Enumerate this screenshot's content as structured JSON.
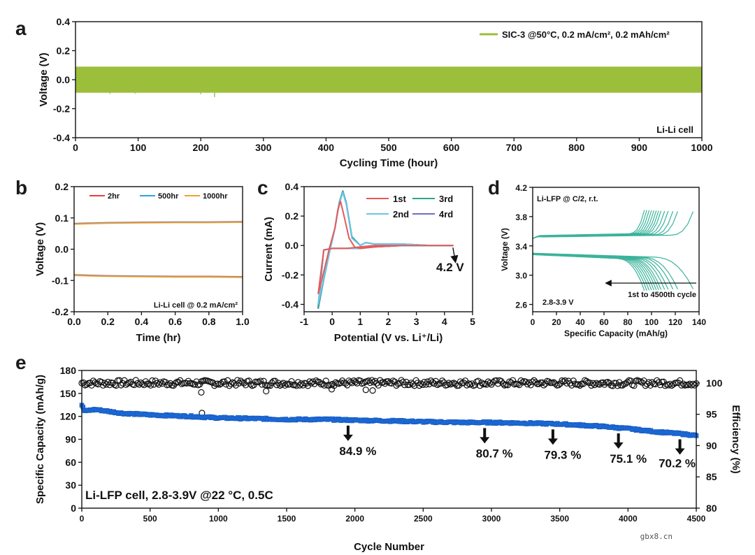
{
  "watermark": "gbx8.cn",
  "chart_data": [
    {
      "panel": "a",
      "type": "line",
      "title": "",
      "xlabel": "Cycling Time (hour)",
      "ylabel": "Voltage (V)",
      "xlim": [
        0,
        1000
      ],
      "ylim": [
        -0.4,
        0.4
      ],
      "xticks": [
        0,
        100,
        200,
        300,
        400,
        500,
        600,
        700,
        800,
        900,
        1000
      ],
      "yticks": [
        -0.4,
        -0.2,
        0.0,
        0.2,
        0.4
      ],
      "ytick_labels": [
        "-0.4",
        "-0.2",
        "0.0",
        "0.2",
        "0.4"
      ],
      "series": [
        {
          "name": "SIC-3 @50°C, 0.2 mA/cm², 0.2 mAh/cm²",
          "color": "#9bbf3a",
          "band_upper": 0.09,
          "band_lower": -0.09,
          "x_range": [
            0,
            1000
          ]
        }
      ],
      "annotation": "Li-Li cell",
      "legend_location": "top-right"
    },
    {
      "panel": "b",
      "type": "line",
      "xlabel": "Time (hr)",
      "ylabel": "Voltage (V)",
      "xlim": [
        0,
        1.0
      ],
      "ylim": [
        -0.2,
        0.2
      ],
      "xticks": [
        0.0,
        0.2,
        0.4,
        0.6,
        0.8,
        1.0
      ],
      "xtick_labels": [
        "0.0",
        "0.2",
        "0.4",
        "0.6",
        "0.8",
        "1.0"
      ],
      "yticks": [
        -0.2,
        -0.1,
        0.0,
        0.1,
        0.2
      ],
      "ytick_labels": [
        "-0.2",
        "-0.1",
        "0.0",
        "0.1",
        "0.2"
      ],
      "series": [
        {
          "name": "2hr",
          "color": "#e0443c",
          "x": [
            0,
            0.2,
            0.4,
            0.6,
            0.8,
            1.0
          ],
          "upper": [
            0.082,
            0.085,
            0.086,
            0.087,
            0.087,
            0.088
          ],
          "lower": [
            -0.082,
            -0.085,
            -0.086,
            -0.087,
            -0.087,
            -0.088
          ]
        },
        {
          "name": "500hr",
          "color": "#2aa6e0",
          "x": [
            0,
            0.2,
            0.4,
            0.6,
            0.8,
            1.0
          ],
          "upper": [
            0.081,
            0.084,
            0.085,
            0.086,
            0.086,
            0.087
          ],
          "lower": [
            -0.083,
            -0.086,
            -0.087,
            -0.088,
            -0.088,
            -0.089
          ]
        },
        {
          "name": "1000hr",
          "color": "#f0a030",
          "x": [
            0,
            0.2,
            0.4,
            0.6,
            0.8,
            1.0
          ],
          "upper": [
            0.08,
            0.083,
            0.084,
            0.085,
            0.085,
            0.086
          ],
          "lower": [
            -0.084,
            -0.087,
            -0.088,
            -0.089,
            -0.089,
            -0.09
          ]
        }
      ],
      "annotation": "Li-Li cell @ 0.2 mA/cm²",
      "legend_location": "top"
    },
    {
      "panel": "c",
      "type": "line",
      "xlabel": "Potential (V vs. Li⁺/Li)",
      "ylabel": "Current (mA)",
      "xlim": [
        -1,
        5
      ],
      "ylim": [
        -0.45,
        0.4
      ],
      "xticks": [
        -1,
        0,
        1,
        2,
        3,
        4,
        5
      ],
      "yticks": [
        -0.4,
        -0.2,
        0.0,
        0.2,
        0.4
      ],
      "ytick_labels": [
        "-0.4",
        "-0.2",
        "0.0",
        "0.2",
        "0.4"
      ],
      "series": [
        {
          "name": "1st",
          "color": "#e65a5a",
          "x": [
            -0.5,
            -0.3,
            -0.1,
            0.1,
            0.2,
            0.3,
            0.4,
            0.6,
            0.8,
            1.0,
            1.5,
            2.5,
            3.5,
            4.3,
            3.5,
            2.5,
            1.5,
            1.0,
            0.5,
            0.0,
            -0.3,
            -0.5
          ],
          "y": [
            -0.33,
            -0.18,
            -0.02,
            0.12,
            0.24,
            0.3,
            0.22,
            0.05,
            -0.01,
            -0.02,
            -0.01,
            0.0,
            0.0,
            0.0,
            0.0,
            0.0,
            0.0,
            -0.01,
            -0.02,
            -0.02,
            -0.03,
            -0.33
          ]
        },
        {
          "name": "2nd",
          "color": "#6fc4ea",
          "x": [
            -0.5,
            -0.3,
            -0.1,
            0.1,
            0.25,
            0.38,
            0.5,
            0.7,
            1.0,
            1.2,
            1.5,
            2.5,
            3.5,
            4.3,
            3.5,
            2.5,
            1.5,
            1.0,
            0.5,
            0.0,
            -0.3,
            -0.5
          ],
          "y": [
            -0.4,
            -0.22,
            -0.05,
            0.12,
            0.28,
            0.36,
            0.28,
            0.05,
            0.0,
            0.02,
            0.01,
            0.01,
            0.0,
            0.0,
            0.0,
            0.0,
            -0.01,
            -0.02,
            -0.02,
            -0.02,
            -0.03,
            -0.4
          ]
        },
        {
          "name": "3rd",
          "color": "#2aa58a",
          "x": [
            -0.5,
            -0.3,
            -0.1,
            0.1,
            0.25,
            0.38,
            0.5,
            0.7,
            1.0,
            1.2,
            1.5,
            2.5,
            3.5,
            4.3,
            3.5,
            2.5,
            1.5,
            1.0,
            0.5,
            0.0,
            -0.3,
            -0.5
          ],
          "y": [
            -0.42,
            -0.23,
            -0.05,
            0.12,
            0.29,
            0.37,
            0.29,
            0.06,
            0.0,
            0.02,
            0.01,
            0.01,
            0.0,
            0.0,
            0.0,
            0.0,
            -0.01,
            -0.02,
            -0.02,
            -0.02,
            -0.03,
            -0.42
          ]
        },
        {
          "name": "4rd",
          "color": "#6f6fbf",
          "x": [
            -0.5,
            -0.3,
            -0.1,
            0.1,
            0.25,
            0.38,
            0.5,
            0.7,
            1.0,
            1.2,
            1.5,
            2.5,
            3.5,
            4.3,
            3.5,
            2.5,
            1.5,
            1.0,
            0.5,
            0.0,
            -0.3,
            -0.5
          ],
          "y": [
            -0.43,
            -0.23,
            -0.05,
            0.12,
            0.29,
            0.37,
            0.29,
            0.06,
            0.0,
            0.02,
            0.01,
            0.01,
            0.0,
            0.0,
            0.0,
            0.0,
            -0.01,
            -0.02,
            -0.02,
            -0.02,
            -0.03,
            -0.43
          ]
        }
      ],
      "annotation": "4.2 V",
      "annotation_point": [
        4.3,
        0.0
      ],
      "legend_location": "top-right"
    },
    {
      "panel": "d",
      "type": "line",
      "xlabel": "Specific Capacity (mAh/g)",
      "ylabel": "Voltage (V)",
      "xlim": [
        0,
        140
      ],
      "ylim": [
        2.5,
        4.2
      ],
      "xticks": [
        0,
        20,
        40,
        60,
        80,
        100,
        120,
        140
      ],
      "yticks": [
        2.6,
        3.0,
        3.4,
        3.8,
        4.2
      ],
      "ytick_labels": [
        "2.6",
        "3.0",
        "3.4",
        "3.8",
        "4.2"
      ],
      "series": [
        {
          "name": "charge/discharge curves",
          "color": "#3bb39b",
          "capacities": [
            135,
            122,
            118,
            114,
            111,
            108,
            106,
            104,
            102,
            100,
            98,
            96,
            94
          ]
        }
      ],
      "annotations": [
        "Li-LFP @  C/2, r.t.",
        "2.8-3.9 V",
        "1st to 4500th cycle"
      ]
    },
    {
      "panel": "e",
      "type": "scatter",
      "xlabel": "Cycle Number",
      "ylabel": "Specific Capacity (mAh/g)",
      "ylabel_right": "Efficiency  (%)",
      "xlim": [
        0,
        4500
      ],
      "ylim": [
        0,
        180
      ],
      "ylim_right": [
        80,
        102
      ],
      "xticks": [
        0,
        500,
        1000,
        1500,
        2000,
        2500,
        3000,
        3500,
        4000,
        4500
      ],
      "yticks": [
        0,
        30,
        60,
        90,
        120,
        150,
        180
      ],
      "yticks_right": [
        80,
        85,
        90,
        95,
        100
      ],
      "series": [
        {
          "name": "Specific Capacity",
          "color": "#1f6fe0",
          "marker": "square",
          "x": [
            0,
            20,
            100,
            300,
            500,
            800,
            1000,
            1300,
            1500,
            1800,
            2000,
            2300,
            2500,
            2800,
            3000,
            3300,
            3500,
            3800,
            4000,
            4200,
            4400,
            4500
          ],
          "y": [
            135,
            127,
            129,
            124,
            122,
            120,
            118,
            117,
            116,
            116,
            115,
            114,
            113,
            112,
            112,
            111,
            110,
            107,
            104,
            100,
            97,
            95
          ]
        },
        {
          "name": "Efficiency",
          "color": "#111111",
          "marker": "circle",
          "x": [
            0,
            500,
            1000,
            1500,
            2000,
            2500,
            3000,
            3500,
            4000,
            4500
          ],
          "y": [
            100,
            100,
            100,
            100,
            100,
            100,
            100,
            100,
            100,
            100
          ]
        }
      ],
      "outliers_efficiency": [
        [
          875,
          98.5
        ],
        [
          880,
          95.2
        ],
        [
          1350,
          98.7
        ],
        [
          1830,
          99.0
        ],
        [
          2080,
          98.9
        ],
        [
          2130,
          98.8
        ]
      ],
      "retention_labels": [
        {
          "cycle": 1950,
          "text": "84.9 %"
        },
        {
          "cycle": 2950,
          "text": "80.7 %"
        },
        {
          "cycle": 3450,
          "text": "79.3 %"
        },
        {
          "cycle": 3930,
          "text": "75.1 %"
        },
        {
          "cycle": 4380,
          "text": "70.2 %"
        }
      ],
      "annotation": "Li-LFP cell, 2.8-3.9V @22 °C, 0.5C"
    }
  ]
}
